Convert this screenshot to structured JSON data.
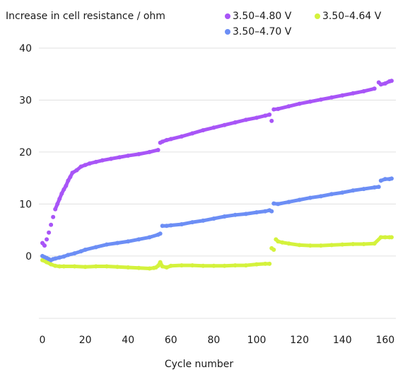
{
  "chart_data": {
    "type": "scatter",
    "title": "",
    "ylabel": "Increase in cell resistance / ohm",
    "xlabel": "Cycle number",
    "xlim": [
      0,
      165
    ],
    "ylim": [
      -12,
      40
    ],
    "xticks": [
      0,
      20,
      40,
      60,
      80,
      100,
      120,
      140,
      160
    ],
    "yticks": [
      0,
      10,
      20,
      30,
      40
    ],
    "grid": "horizontal",
    "legend_position": "top-right",
    "series": [
      {
        "name": "3.50–4.80 V",
        "color": "#a855f7",
        "x": [
          0,
          1,
          2,
          3,
          4,
          5,
          6,
          7,
          8,
          9,
          10,
          11,
          12,
          13,
          14,
          16,
          18,
          20,
          22,
          25,
          28,
          32,
          36,
          40,
          45,
          50,
          54,
          55,
          56,
          58,
          60,
          65,
          70,
          75,
          80,
          85,
          90,
          95,
          100,
          104,
          106,
          107,
          108,
          110,
          115,
          120,
          125,
          130,
          135,
          140,
          145,
          150,
          155,
          157,
          158,
          160,
          162,
          163
        ],
        "values": [
          2.5,
          2.0,
          3.2,
          4.5,
          6.0,
          7.5,
          9.0,
          10.0,
          11.0,
          12.0,
          12.8,
          13.5,
          14.5,
          15.2,
          16.0,
          16.5,
          17.2,
          17.5,
          17.8,
          18.1,
          18.4,
          18.7,
          19.0,
          19.3,
          19.6,
          20.0,
          20.4,
          21.8,
          22.0,
          22.3,
          22.5,
          23.0,
          23.6,
          24.2,
          24.7,
          25.2,
          25.7,
          26.2,
          26.6,
          27.0,
          27.2,
          26.0,
          28.2,
          28.3,
          28.8,
          29.3,
          29.7,
          30.1,
          30.5,
          30.9,
          31.3,
          31.7,
          32.2,
          33.4,
          33.0,
          33.2,
          33.6,
          33.7
        ]
      },
      {
        "name": "3.50–4.64 V",
        "color": "#d4f23c",
        "x": [
          0,
          2,
          4,
          6,
          8,
          10,
          15,
          20,
          25,
          30,
          35,
          40,
          45,
          50,
          52,
          53,
          54,
          55,
          56,
          58,
          60,
          65,
          70,
          75,
          80,
          85,
          90,
          95,
          100,
          104,
          106,
          107,
          108,
          109,
          110,
          112,
          115,
          120,
          125,
          130,
          135,
          140,
          145,
          150,
          155,
          158,
          160,
          162,
          163
        ],
        "values": [
          -0.8,
          -1.2,
          -1.6,
          -1.9,
          -2.0,
          -2.0,
          -2.0,
          -2.1,
          -2.0,
          -2.0,
          -2.1,
          -2.2,
          -2.3,
          -2.4,
          -2.3,
          -2.2,
          -1.9,
          -1.2,
          -2.0,
          -2.2,
          -1.9,
          -1.8,
          -1.8,
          -1.9,
          -1.9,
          -1.9,
          -1.8,
          -1.8,
          -1.6,
          -1.5,
          -1.5,
          1.5,
          1.2,
          3.2,
          2.8,
          2.6,
          2.4,
          2.1,
          2.0,
          2.0,
          2.1,
          2.2,
          2.3,
          2.3,
          2.4,
          3.6,
          3.6,
          3.6,
          3.6
        ]
      },
      {
        "name": "3.50–4.70 V",
        "color": "#6c8ef5",
        "x": [
          0,
          1,
          2,
          3,
          4,
          5,
          6,
          8,
          10,
          12,
          15,
          18,
          20,
          25,
          30,
          35,
          40,
          45,
          50,
          54,
          55,
          56,
          58,
          60,
          65,
          70,
          75,
          80,
          85,
          90,
          95,
          100,
          104,
          106,
          107,
          108,
          110,
          115,
          120,
          125,
          130,
          135,
          140,
          145,
          150,
          155,
          157,
          158,
          160,
          162,
          163
        ],
        "values": [
          0,
          -0.2,
          -0.4,
          -0.6,
          -0.8,
          -0.6,
          -0.5,
          -0.3,
          -0.1,
          0.2,
          0.5,
          0.9,
          1.2,
          1.7,
          2.2,
          2.5,
          2.8,
          3.2,
          3.6,
          4.1,
          4.3,
          5.8,
          5.8,
          5.9,
          6.1,
          6.5,
          6.8,
          7.2,
          7.6,
          7.9,
          8.1,
          8.4,
          8.6,
          8.8,
          8.6,
          10.1,
          10.0,
          10.4,
          10.8,
          11.2,
          11.5,
          11.9,
          12.2,
          12.6,
          12.9,
          13.2,
          13.3,
          14.5,
          14.8,
          14.8,
          14.9
        ]
      }
    ]
  }
}
